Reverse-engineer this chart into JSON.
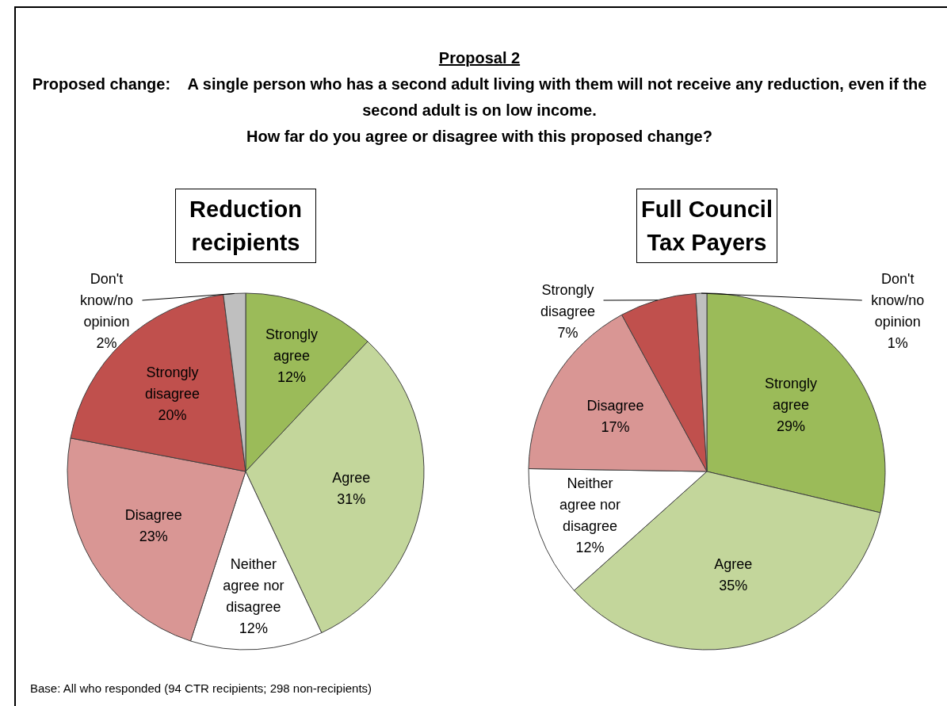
{
  "chart_data": [
    {
      "type": "pie",
      "title": "Reduction recipients",
      "annotations": [
        "Proposal 2",
        "Proposed change:    A single person who has a second adult living with them will not receive any reduction, even if the second adult is on low income.",
        "How far do you agree or disagree with this proposed change?",
        "Base: All who responded (94 CTR recipients; 298 non-recipients)"
      ],
      "categories": [
        "Strongly agree",
        "Agree",
        "Neither agree nor disagree",
        "Disagree",
        "Strongly disagree",
        "Don't know/no opinion"
      ],
      "values": [
        12,
        31,
        12,
        23,
        20,
        2
      ],
      "value_labels": [
        "12%",
        "31%",
        "12%",
        "23%",
        "20%",
        "2%"
      ],
      "colors": [
        "#9bbb59",
        "#c3d69b",
        "#ffffff",
        "#d99694",
        "#c0504d",
        "#bfbfbf"
      ]
    },
    {
      "type": "pie",
      "title": "Full Council Tax Payers",
      "categories": [
        "Strongly agree",
        "Agree",
        "Neither agree nor disagree",
        "Disagree",
        "Strongly disagree",
        "Don't know/no opinion"
      ],
      "values": [
        29,
        35,
        12,
        17,
        7,
        1
      ],
      "value_labels": [
        "29%",
        "35%",
        "12%",
        "17%",
        "7%",
        "1%"
      ],
      "colors": [
        "#9bbb59",
        "#c3d69b",
        "#ffffff",
        "#d99694",
        "#c0504d",
        "#bfbfbf"
      ]
    }
  ]
}
